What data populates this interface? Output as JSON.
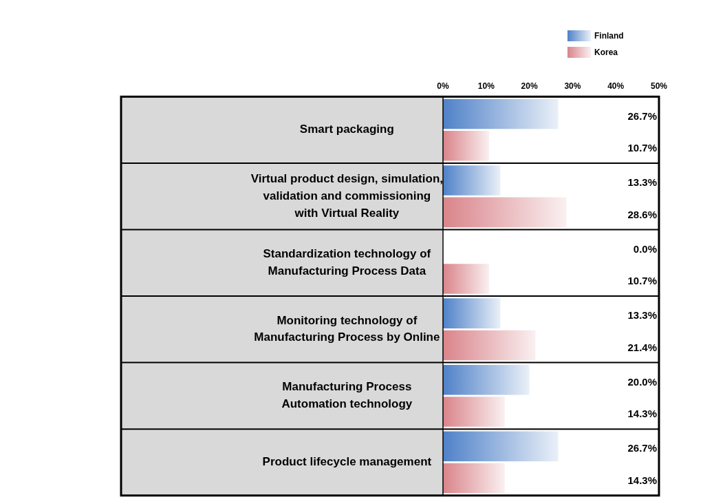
{
  "chart_data": {
    "type": "bar",
    "orientation": "horizontal",
    "categories": [
      [
        "Smart packaging"
      ],
      [
        "Virtual product design, simulation,",
        "validation and commissioning",
        "with Virtual Reality"
      ],
      [
        "Standardization technology of",
        "Manufacturing Process Data"
      ],
      [
        "Monitoring technology of",
        "Manufacturing Process by Online"
      ],
      [
        "Manufacturing Process",
        "Automation technology"
      ],
      [
        "Product lifecycle management"
      ]
    ],
    "series": [
      {
        "name": "Finland",
        "color": "#4f81c8",
        "values": [
          26.7,
          13.3,
          0.0,
          13.3,
          20.0,
          26.7
        ],
        "value_labels": [
          "26.7%",
          "13.3%",
          "0.0%",
          "13.3%",
          "20.0%",
          "26.7%"
        ]
      },
      {
        "name": "Korea",
        "color": "#d9848a",
        "values": [
          10.7,
          28.6,
          10.7,
          21.4,
          14.3,
          14.3
        ],
        "value_labels": [
          "10.7%",
          "28.6%",
          "10.7%",
          "21.4%",
          "14.3%",
          "14.3%"
        ]
      }
    ],
    "xlim": [
      0,
      50
    ],
    "xticks": [
      {
        "value": 0,
        "label": "0%"
      },
      {
        "value": 10,
        "label": "10%"
      },
      {
        "value": 20,
        "label": "20%"
      },
      {
        "value": 30,
        "label": "30%"
      },
      {
        "value": 40,
        "label": "40%"
      },
      {
        "value": 50,
        "label": "50%"
      }
    ],
    "grid": false,
    "legend": "upper right",
    "data_labels": true
  }
}
